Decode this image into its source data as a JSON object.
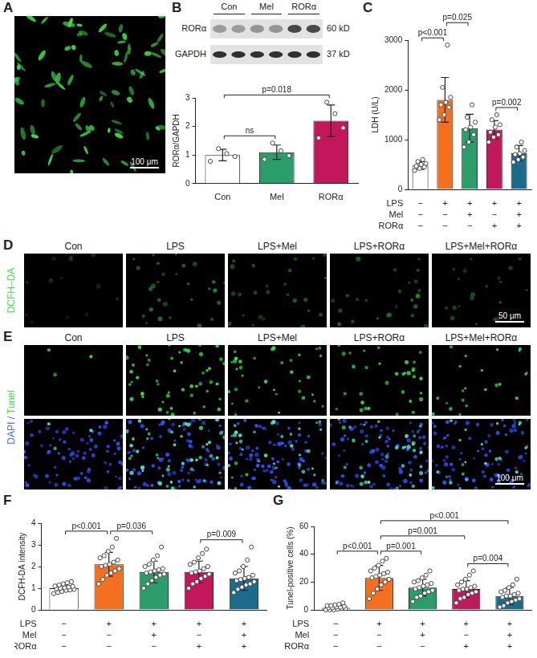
{
  "overview_image": {
    "label": "A",
    "scale_bar": "100 μm"
  },
  "blot": {
    "label": "B",
    "lanes": [
      "Con",
      "Mel",
      "RORα"
    ],
    "bands": [
      {
        "name": "RORα",
        "size": "60 kD"
      },
      {
        "name": "GAPDH",
        "size": "37 kD"
      }
    ]
  },
  "ros_images": {
    "label": "D",
    "row_label": [
      {
        "text": "DCFH–DA",
        "color": "#3ddc4a"
      }
    ],
    "columns": [
      "Con",
      "LPS",
      "LPS+Mel",
      "LPS+RORα",
      "LPS+Mel+RORα"
    ],
    "scale_bar": "50 μm"
  },
  "tunel_images": {
    "label": "E",
    "row_label": [
      {
        "text": "DAPI",
        "color": "#4a64ff"
      },
      {
        "text": " / ",
        "color": "#4a64ff"
      },
      {
        "text": "Tunel",
        "color": "#3ddc4a"
      }
    ],
    "columns": [
      "Con",
      "LPS",
      "LPS+Mel",
      "LPS+RORα",
      "LPS+Mel+RORα"
    ],
    "scale_bar": "100 μm"
  },
  "chart_data": [
    {
      "type": "bar",
      "ylabel": "RORα/GAPDH",
      "categories": [
        "Con",
        "Mel",
        "RORα"
      ],
      "values": [
        1.0,
        1.1,
        2.2
      ],
      "errors": [
        0.2,
        0.25,
        0.55
      ],
      "points": [
        [
          0.78,
          0.95,
          1.05,
          1.22
        ],
        [
          0.85,
          0.98,
          1.15,
          1.42
        ],
        [
          1.6,
          1.95,
          2.45,
          2.85
        ]
      ],
      "colors": [
        "#ffffff",
        "#2a9d6a",
        "#c2185b"
      ],
      "ylim": [
        0,
        3
      ],
      "yticks": [
        0,
        1,
        2,
        3
      ],
      "grid": false,
      "annotations": [
        {
          "text": "ns",
          "between": [
            0,
            1
          ]
        },
        {
          "text": "p=0.018",
          "between": [
            0,
            2
          ]
        }
      ]
    },
    {
      "type": "bar",
      "label": "C",
      "ylabel": "LDH (U/L)",
      "categories": [
        null,
        null,
        null,
        null,
        null
      ],
      "values": [
        480,
        1800,
        1230,
        1200,
        730
      ],
      "errors": [
        80,
        450,
        280,
        180,
        150
      ],
      "points": [
        [
          380,
          420,
          450,
          470,
          500,
          520,
          560,
          600
        ],
        [
          1400,
          1500,
          1650,
          1700,
          1750,
          1850,
          2050,
          2900
        ],
        [
          850,
          950,
          1100,
          1200,
          1250,
          1350,
          1450,
          1700
        ],
        [
          950,
          1050,
          1100,
          1150,
          1250,
          1300,
          1400,
          1500
        ],
        [
          550,
          600,
          650,
          700,
          720,
          780,
          850,
          950
        ]
      ],
      "colors": [
        "#ffffff",
        "#f4701f",
        "#2a9d6a",
        "#c2185b",
        "#1b6c8c"
      ],
      "ylim": [
        0,
        3000
      ],
      "yticks": [
        0,
        1000,
        2000,
        3000
      ],
      "grid": false,
      "conditions": [
        {
          "label": "LPS",
          "marks": [
            "−",
            "+",
            "+",
            "+",
            "+"
          ]
        },
        {
          "label": "Mel",
          "marks": [
            "−",
            "−",
            "+",
            "−",
            "+"
          ]
        },
        {
          "label": "RORα",
          "marks": [
            "−",
            "−",
            "−",
            "+",
            "+"
          ]
        }
      ],
      "annotations": [
        {
          "text": "p<0.001",
          "between": [
            0,
            1
          ]
        },
        {
          "text": "p=0.025",
          "between": [
            1,
            2
          ]
        },
        {
          "text": "p=0.002",
          "between": [
            3,
            4
          ]
        }
      ]
    },
    {
      "type": "bar",
      "label": "F",
      "ylabel": "DCFH-DA intensity",
      "categories": [
        null,
        null,
        null,
        null,
        null
      ],
      "values": [
        1.0,
        2.1,
        1.75,
        1.75,
        1.45
      ],
      "errors": [
        0.15,
        0.55,
        0.5,
        0.5,
        0.55
      ],
      "points": [
        [
          0.75,
          0.8,
          0.85,
          0.9,
          0.92,
          0.95,
          0.98,
          1.0,
          1.02,
          1.05,
          1.08,
          1.1,
          1.15,
          1.2,
          1.25,
          1.3
        ],
        [
          1.2,
          1.4,
          1.6,
          1.7,
          1.8,
          1.9,
          2.0,
          2.05,
          2.1,
          2.2,
          2.3,
          2.4,
          2.5,
          2.7,
          2.9,
          3.3
        ],
        [
          1.0,
          1.2,
          1.35,
          1.5,
          1.6,
          1.65,
          1.7,
          1.75,
          1.8,
          1.85,
          1.9,
          2.0,
          2.1,
          2.3,
          2.5,
          2.9
        ],
        [
          1.0,
          1.2,
          1.3,
          1.45,
          1.55,
          1.65,
          1.7,
          1.75,
          1.8,
          1.9,
          2.0,
          2.1,
          2.2,
          2.4,
          2.6,
          2.8
        ],
        [
          0.8,
          0.95,
          1.05,
          1.15,
          1.2,
          1.3,
          1.35,
          1.4,
          1.45,
          1.5,
          1.6,
          1.7,
          1.8,
          2.0,
          2.3,
          2.9
        ]
      ],
      "colors": [
        "#ffffff",
        "#f4701f",
        "#2a9d6a",
        "#c2185b",
        "#1b6c8c"
      ],
      "ylim": [
        0,
        4
      ],
      "yticks": [
        0,
        1,
        2,
        3,
        4
      ],
      "grid": false,
      "conditions": [
        {
          "label": "LPS",
          "marks": [
            "−",
            "+",
            "+",
            "+",
            "+"
          ]
        },
        {
          "label": "Mel",
          "marks": [
            "−",
            "−",
            "+",
            "−",
            "+"
          ]
        },
        {
          "label": "RORα",
          "marks": [
            "−",
            "−",
            "−",
            "+",
            "+"
          ]
        }
      ],
      "annotations": [
        {
          "text": "p<0.001",
          "between": [
            0,
            1
          ]
        },
        {
          "text": "p=0.036",
          "between": [
            1,
            2
          ]
        },
        {
          "text": "p=0.009",
          "between": [
            3,
            4
          ]
        }
      ]
    },
    {
      "type": "bar",
      "label": "G",
      "ylabel": "Tunel-positive cells (%)",
      "categories": [
        null,
        null,
        null,
        null,
        null
      ],
      "values": [
        1.5,
        23,
        16,
        15,
        10
      ],
      "errors": [
        1.5,
        9,
        6,
        6,
        6
      ],
      "points": [
        [
          0,
          0,
          0,
          0.5,
          1,
          1,
          1.5,
          1.5,
          2,
          2,
          2.5,
          3,
          3,
          3.5,
          4,
          5
        ],
        [
          8,
          12,
          15,
          18,
          20,
          22,
          23,
          24,
          25,
          26,
          27,
          28,
          30,
          32,
          35,
          37
        ],
        [
          6,
          9,
          10,
          12,
          13,
          14,
          15,
          16,
          17,
          18,
          19,
          20,
          21,
          23,
          25,
          28
        ],
        [
          5,
          8,
          9,
          11,
          12,
          13,
          14,
          15,
          15,
          16,
          17,
          18,
          20,
          22,
          25,
          28
        ],
        [
          2,
          3,
          5,
          6,
          7,
          8,
          9,
          10,
          10,
          11,
          12,
          13,
          14,
          16,
          18,
          22
        ]
      ],
      "colors": [
        "#ffffff",
        "#f4701f",
        "#2a9d6a",
        "#c2185b",
        "#1b6c8c"
      ],
      "ylim": [
        0,
        60
      ],
      "yticks": [
        0,
        20,
        40,
        60
      ],
      "grid": false,
      "conditions": [
        {
          "label": "LPS",
          "marks": [
            "−",
            "+",
            "+",
            "+",
            "+"
          ]
        },
        {
          "label": "Mel",
          "marks": [
            "−",
            "−",
            "+",
            "−",
            "+"
          ]
        },
        {
          "label": "RORα",
          "marks": [
            "−",
            "−",
            "−",
            "+",
            "+"
          ]
        }
      ],
      "annotations": [
        {
          "text": "p<0.001",
          "between": [
            0,
            1
          ]
        },
        {
          "text": "p=0.001",
          "between": [
            1,
            2
          ]
        },
        {
          "text": "p=0.004",
          "between": [
            3,
            4
          ]
        },
        {
          "text": "p=0.001",
          "between": [
            1,
            3
          ]
        },
        {
          "text": "p<0.001",
          "between": [
            1,
            4
          ]
        }
      ]
    }
  ]
}
